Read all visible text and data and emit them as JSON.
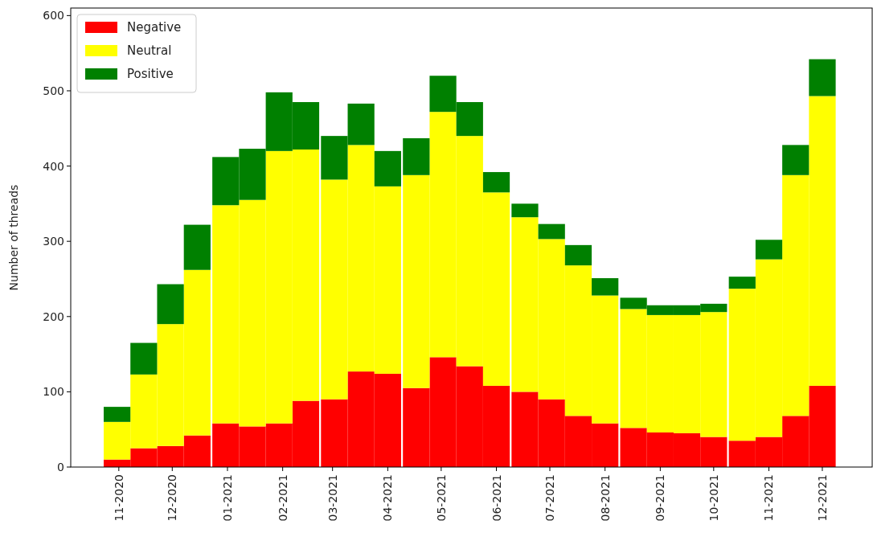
{
  "chart_data": {
    "type": "bar",
    "ylabel": "Number of threads",
    "stacked": true,
    "legend": "top left",
    "grid": false,
    "x": [
      "2020-10-31",
      "2020-11-15",
      "2020-11-30",
      "2020-12-15",
      "2020-12-31",
      "2021-01-15",
      "2021-01-30",
      "2021-02-14",
      "2021-03-02",
      "2021-03-17",
      "2021-04-01",
      "2021-04-17",
      "2021-05-02",
      "2021-05-17",
      "2021-06-01",
      "2021-06-17",
      "2021-07-02",
      "2021-07-17",
      "2021-08-01",
      "2021-08-17",
      "2021-09-01",
      "2021-09-16",
      "2021-10-01",
      "2021-10-17",
      "2021-11-01",
      "2021-11-16",
      "2021-12-01"
    ],
    "series": [
      {
        "name": "Negative",
        "color": "#ff0000",
        "values": [
          10,
          25,
          28,
          42,
          58,
          54,
          58,
          88,
          90,
          127,
          124,
          105,
          146,
          134,
          108,
          100,
          90,
          68,
          58,
          52,
          46,
          45,
          40,
          35,
          40,
          68,
          108
        ]
      },
      {
        "name": "Neutral",
        "color": "#ffff00",
        "values": [
          50,
          98,
          162,
          220,
          290,
          301,
          362,
          334,
          292,
          301,
          249,
          283,
          326,
          306,
          257,
          232,
          213,
          200,
          170,
          158,
          156,
          157,
          166,
          202,
          236,
          320,
          385
        ]
      },
      {
        "name": "Positive",
        "color": "#008000",
        "values": [
          20,
          42,
          53,
          60,
          64,
          68,
          78,
          63,
          58,
          55,
          47,
          49,
          48,
          45,
          27,
          18,
          20,
          27,
          23,
          15,
          13,
          13,
          11,
          16,
          26,
          40,
          49
        ]
      }
    ],
    "xlim": [
      "2020-10-05",
      "2021-12-29"
    ],
    "xticks": [
      {
        "value": "2020-11-01",
        "label": "11-2020"
      },
      {
        "value": "2020-12-01",
        "label": "12-2020"
      },
      {
        "value": "2021-01-01",
        "label": "01-2021"
      },
      {
        "value": "2021-02-01",
        "label": "02-2021"
      },
      {
        "value": "2021-03-01",
        "label": "03-2021"
      },
      {
        "value": "2021-04-01",
        "label": "04-2021"
      },
      {
        "value": "2021-05-01",
        "label": "05-2021"
      },
      {
        "value": "2021-06-01",
        "label": "06-2021"
      },
      {
        "value": "2021-07-01",
        "label": "07-2021"
      },
      {
        "value": "2021-08-01",
        "label": "08-2021"
      },
      {
        "value": "2021-09-01",
        "label": "09-2021"
      },
      {
        "value": "2021-10-01",
        "label": "10-2021"
      },
      {
        "value": "2021-11-01",
        "label": "11-2021"
      },
      {
        "value": "2021-12-01",
        "label": "12-2021"
      }
    ],
    "ylim": [
      0,
      610
    ],
    "yticks": [
      0,
      100,
      200,
      300,
      400,
      500,
      600
    ]
  }
}
